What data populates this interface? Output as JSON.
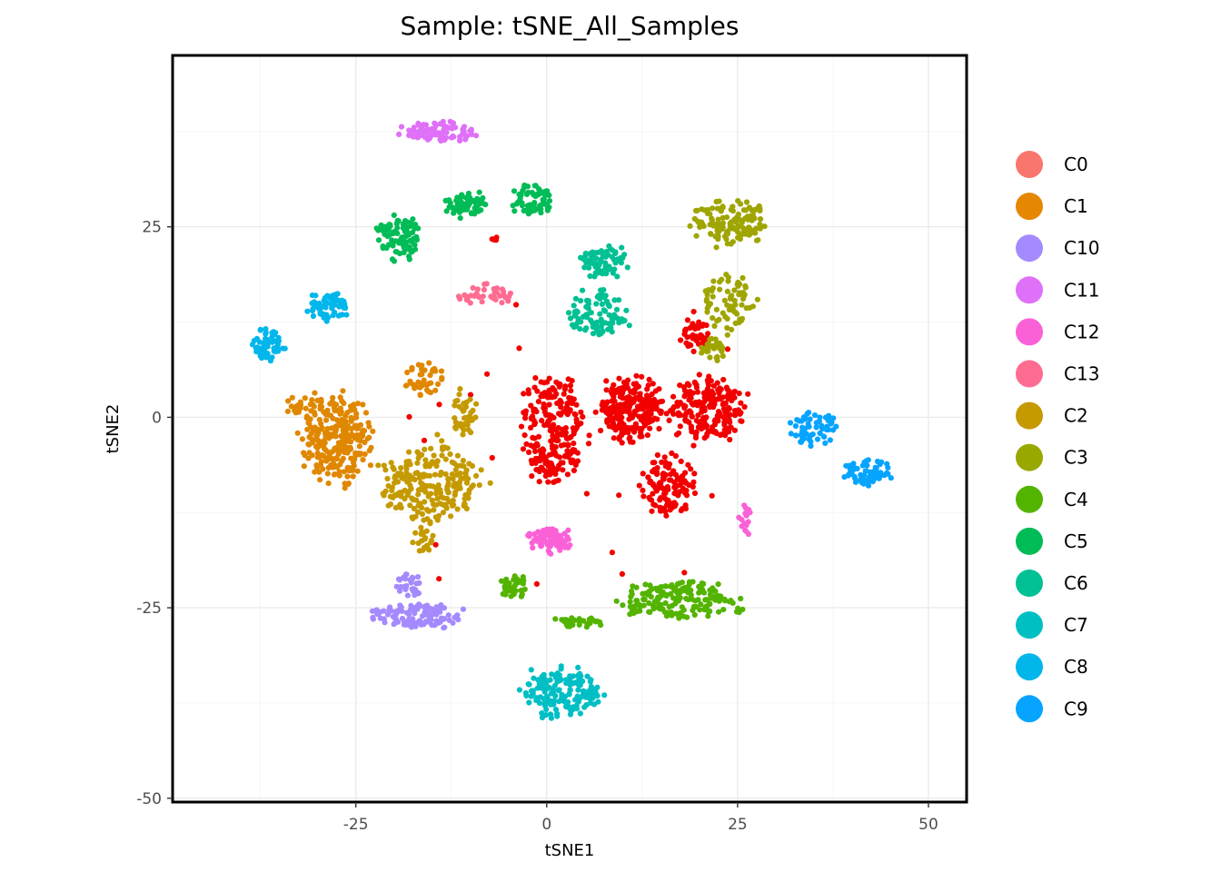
{
  "chart_data": {
    "type": "scatter",
    "title": "Sample: tSNE_All_Samples",
    "xlabel": "tSNE1",
    "ylabel": "tSNE2",
    "xlim": [
      -49,
      55
    ],
    "ylim": [
      -50.5,
      47.5
    ],
    "x_ticks": [
      -25,
      0,
      25,
      50
    ],
    "y_ticks": [
      -50,
      -25,
      0,
      25
    ],
    "x_minor_ticks": [
      -37.5,
      -12.5,
      12.5,
      37.5
    ],
    "y_minor_ticks": [
      -37.5,
      -12.5,
      12.5,
      37.5
    ],
    "grid": true,
    "legend_position": "right",
    "series": [
      {
        "name": "C0",
        "color": "#F8766D",
        "clusters": [
          {
            "x": [
              -4,
              6
            ],
            "y": [
              -10,
              7
            ],
            "n": 240
          },
          {
            "x": [
              6,
              16
            ],
            "y": [
              -4,
              6
            ],
            "n": 230
          },
          {
            "x": [
              15,
              27
            ],
            "y": [
              -4,
              6
            ],
            "n": 200
          },
          {
            "x": [
              12,
              20
            ],
            "y": [
              -14,
              -4
            ],
            "n": 120
          },
          {
            "x": [
              17,
              22
            ],
            "y": [
              8,
              14
            ],
            "n": 40
          },
          {
            "x": [
              -8,
              -6
            ],
            "y": [
              23,
              24
            ],
            "n": 4
          },
          {
            "x": [
              -18,
              28
            ],
            "y": [
              -22,
              16
            ],
            "n": 25,
            "sparse": true
          }
        ]
      },
      {
        "name": "C1",
        "color": "#E58700",
        "clusters": [
          {
            "x": [
              -33,
              -22
            ],
            "y": [
              -10,
              5
            ],
            "n": 260
          },
          {
            "x": [
              -19,
              -13
            ],
            "y": [
              2,
              8
            ],
            "n": 40
          },
          {
            "x": [
              -35,
              -31
            ],
            "y": [
              0,
              3
            ],
            "n": 15
          }
        ]
      },
      {
        "name": "C10",
        "color": "#A3A500",
        "label_color_note": "lavender",
        "clusters": [
          {
            "x": [
              -25,
              -10
            ],
            "y": [
              -28,
              -24
            ],
            "n": 110
          },
          {
            "x": [
              -20,
              -16
            ],
            "y": [
              -24,
              -20
            ],
            "n": 30
          }
        ]
      },
      {
        "name": "C11",
        "color": "#E76BF3",
        "clusters": [
          {
            "x": [
              -20,
              -8
            ],
            "y": [
              36,
              39
            ],
            "n": 80
          }
        ]
      },
      {
        "name": "C12",
        "color": "#FD61D1",
        "clusters": [
          {
            "x": [
              -3,
              4
            ],
            "y": [
              -18,
              -14
            ],
            "n": 80
          },
          {
            "x": [
              25,
              27
            ],
            "y": [
              -16,
              -11
            ],
            "n": 15
          }
        ]
      },
      {
        "name": "C13",
        "color": "#FF67A4",
        "clusters": [
          {
            "x": [
              -12,
              -4
            ],
            "y": [
              14,
              18
            ],
            "n": 40
          }
        ]
      },
      {
        "name": "C2",
        "color": "#C49A00",
        "clusters": [
          {
            "x": [
              -23,
              -7
            ],
            "y": [
              -15,
              -2
            ],
            "n": 230
          },
          {
            "x": [
              -13,
              -9
            ],
            "y": [
              -3,
              4
            ],
            "n": 40
          },
          {
            "x": [
              -18,
              -14
            ],
            "y": [
              -18,
              -14
            ],
            "n": 20
          }
        ]
      },
      {
        "name": "C3",
        "color": "#99A800",
        "clusters": [
          {
            "x": [
              18,
              30
            ],
            "y": [
              22,
              29
            ],
            "n": 120
          },
          {
            "x": [
              20,
              28
            ],
            "y": [
              10,
              20
            ],
            "n": 70
          },
          {
            "x": [
              20,
              24
            ],
            "y": [
              7,
              11
            ],
            "n": 30
          }
        ]
      },
      {
        "name": "C4",
        "color": "#53B400",
        "clusters": [
          {
            "x": [
              8,
              27
            ],
            "y": [
              -27,
              -21
            ],
            "n": 170
          },
          {
            "x": [
              -7,
              -2
            ],
            "y": [
              -24,
              -20
            ],
            "n": 35
          },
          {
            "x": [
              0,
              8
            ],
            "y": [
              -28,
              -26
            ],
            "n": 30
          }
        ]
      },
      {
        "name": "C5",
        "color": "#00BC56",
        "clusters": [
          {
            "x": [
              -23,
              -16
            ],
            "y": [
              20,
              27
            ],
            "n": 90
          },
          {
            "x": [
              -14,
              -7
            ],
            "y": [
              26,
              30
            ],
            "n": 60
          },
          {
            "x": [
              -5,
              1
            ],
            "y": [
              26,
              31
            ],
            "n": 60
          }
        ]
      },
      {
        "name": "C6",
        "color": "#00C094",
        "clusters": [
          {
            "x": [
              4,
              11
            ],
            "y": [
              18,
              23
            ],
            "n": 70
          },
          {
            "x": [
              1,
              12
            ],
            "y": [
              10,
              17
            ],
            "n": 90
          }
        ]
      },
      {
        "name": "C7",
        "color": "#00BFC4",
        "clusters": [
          {
            "x": [
              -4,
              8
            ],
            "y": [
              -40,
              -32
            ],
            "n": 150
          }
        ]
      },
      {
        "name": "C8",
        "color": "#00B6EB",
        "clusters": [
          {
            "x": [
              -39,
              -34
            ],
            "y": [
              7,
              12
            ],
            "n": 60
          },
          {
            "x": [
              -32,
              -25
            ],
            "y": [
              12,
              17
            ],
            "n": 60
          }
        ]
      },
      {
        "name": "C9",
        "color": "#06A4FF",
        "clusters": [
          {
            "x": [
              31,
              39
            ],
            "y": [
              -4,
              1
            ],
            "n": 60
          },
          {
            "x": [
              38,
              46
            ],
            "y": [
              -9,
              -5
            ],
            "n": 60
          }
        ]
      }
    ]
  }
}
